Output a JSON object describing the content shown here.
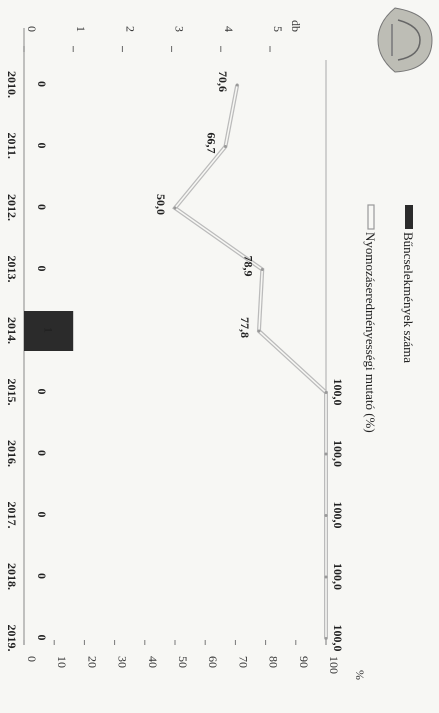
{
  "chart_data": {
    "type": "bar+line",
    "categories": [
      "2010.",
      "2011.",
      "2012.",
      "2013.",
      "2014.",
      "2015.",
      "2016.",
      "2017.",
      "2018.",
      "2019."
    ],
    "series": [
      {
        "name": "Bűncselekmények száma",
        "type": "bar",
        "axis": "left",
        "values": [
          0,
          0,
          0,
          0,
          1,
          0,
          0,
          0,
          0,
          0
        ],
        "labels": [
          "0",
          "0",
          "0",
          "0",
          "1",
          "0",
          "0",
          "0",
          "0",
          "0"
        ],
        "color": "#2b2b2b"
      },
      {
        "name": "Nyomozáseredményességi mutató (%)",
        "type": "line",
        "axis": "right",
        "values": [
          70.6,
          66.7,
          50.0,
          78.9,
          77.8,
          100.0,
          100.0,
          100.0,
          100.0,
          100.0
        ],
        "labels": [
          "70,6",
          "66,7",
          "50,0",
          "78,9",
          "77,8",
          "100,0",
          "100,0",
          "100,0",
          "100,0",
          "100,0"
        ],
        "color": "#9a9a9a"
      }
    ],
    "left_axis": {
      "unit": "db",
      "ticks": [
        "0",
        "1",
        "2",
        "3",
        "4",
        "5"
      ],
      "range": [
        0,
        5
      ]
    },
    "right_axis": {
      "unit": "%",
      "ticks": [
        "0",
        "10",
        "20",
        "30",
        "40",
        "50",
        "60",
        "70",
        "80",
        "90",
        "100"
      ],
      "range": [
        0,
        100
      ]
    },
    "orientation": "rotated-90-clockwise",
    "legend_position": "top"
  },
  "logo": {
    "icon": "police-emblem-icon"
  }
}
